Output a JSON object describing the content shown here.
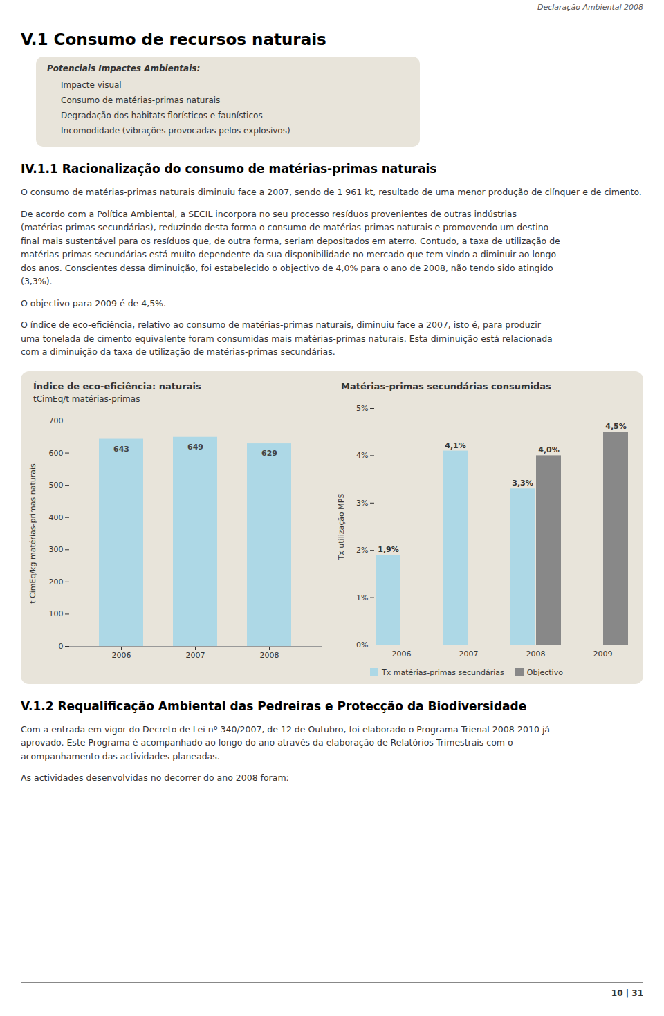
{
  "header": "Declaração Ambiental 2008",
  "title": "V.1 Consumo de recursos naturais",
  "impacts_box": {
    "title": "Potenciais Impactes Ambientais:",
    "items": [
      "Impacte visual",
      "Consumo de matérias-primas naturais",
      "Degradação dos habitats florísticos e faunísticos",
      "Incomodidade (vibrações provocadas pelos explosivos)"
    ]
  },
  "section1": {
    "title": "IV.1.1 Racionalização do consumo de matérias-primas naturais",
    "paragraphs": [
      [
        "O consumo de matérias-primas naturais diminuiu face a 2007, sendo de 1 961 kt, resultado de uma menor produção de clínquer e de cimento."
      ],
      [
        "De acordo com a Política Ambiental, a SECIL incorpora no seu processo resíduos provenientes de outras indústrias",
        "(matérias-primas secundárias), reduzindo desta forma o consumo de matérias-primas naturais e promovendo um destino",
        "final mais sustentável para os resíduos que, de outra forma, seriam depositados em aterro. Contudo, a taxa de utilização de",
        "matérias-primas secundárias está muito dependente da sua disponibilidade no mercado que tem vindo a diminuir ao longo",
        "dos anos. Conscientes dessa diminuição, foi estabelecido o objectivo de 4,0% para o ano de 2008, não tendo sido atingido",
        "(3,3%)."
      ],
      [
        "O objectivo para 2009 é de 4,5%."
      ],
      [
        "O índice de eco-eficiência, relativo ao consumo de matérias-primas naturais, diminuiu face a 2007, isto é, para produzir",
        "uma tonelada de cimento equivalente foram consumidas mais matérias-primas naturais. Esta diminuição está relacionada",
        "com a diminuição da taxa de utilização de matérias-primas secundárias."
      ]
    ]
  },
  "chart_data": [
    {
      "type": "bar",
      "title": "Índice de eco-eficiência: naturais",
      "subtitle": "tCimEq/t matérias-primas",
      "y_label": "t CimEq/kg matérias-primas naturais",
      "categories": [
        "2006",
        "2007",
        "2008"
      ],
      "values": [
        643,
        649,
        629
      ],
      "color": "#add8e6",
      "ylim": [
        0,
        700
      ],
      "yticks": [
        0,
        100,
        200,
        300,
        400,
        500,
        600,
        700
      ],
      "grid": false,
      "data_labels": true
    },
    {
      "type": "bar",
      "title": "Matérias-primas secundárias consumidas",
      "y_label": "Tx utilização MPS",
      "categories": [
        "2006",
        "2007",
        "2008",
        "2009"
      ],
      "series": [
        {
          "name": "Tx matérias-primas secundárias",
          "color": "#add8e6",
          "values": [
            1.9,
            4.1,
            3.3,
            null
          ],
          "value_labels": [
            "1,9%",
            "4,1%",
            "3,3%",
            null
          ]
        },
        {
          "name": "Objectivo",
          "color": "#888888",
          "values": [
            null,
            null,
            4.0,
            4.5
          ],
          "value_labels": [
            null,
            null,
            "4,0%",
            "4,5%"
          ]
        }
      ],
      "ylim": [
        0,
        5
      ],
      "yticks": [
        {
          "value": 0,
          "label": "0%"
        },
        {
          "value": 1,
          "label": "1%"
        },
        {
          "value": 2,
          "label": "2%"
        },
        {
          "value": 3,
          "label": "3%"
        },
        {
          "value": 4,
          "label": "4%"
        },
        {
          "value": 5,
          "label": "5%"
        }
      ],
      "grid": false,
      "legend": "bottom",
      "data_labels": true
    }
  ],
  "section2": {
    "title": "V.1.2 Requalificação Ambiental das Pedreiras e Protecção da Biodiversidade",
    "paragraphs": [
      [
        "Com a entrada em vigor do Decreto de Lei nº 340/2007, de 12 de Outubro, foi elaborado o Programa Trienal 2008-2010  já",
        "aprovado. Este Programa é acompanhado ao longo do ano através da elaboração de Relatórios Trimestrais com o",
        "acompanhamento das actividades planeadas."
      ],
      [
        "As actividades desenvolvidas no decorrer do ano 2008 foram:"
      ]
    ]
  },
  "footer": "10 | 31"
}
